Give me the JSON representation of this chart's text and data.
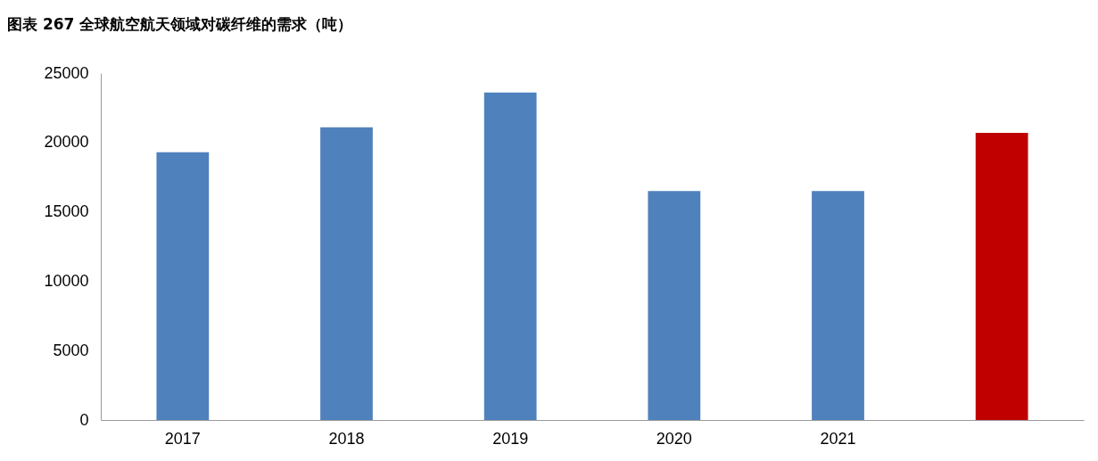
{
  "chart_data": {
    "type": "bar",
    "title": "图表 267 全球航空航天领域对碳纤维的需求（吨）",
    "categories": [
      "2017",
      "2018",
      "2019",
      "2020",
      "2021",
      null
    ],
    "values": [
      19300,
      21100,
      23600,
      16500,
      16500,
      20700
    ],
    "colors": [
      "#4f81bd",
      "#4f81bd",
      "#4f81bd",
      "#4f81bd",
      "#4f81bd",
      "#c00000"
    ],
    "ylim": [
      0,
      25000
    ],
    "yticks": [
      0,
      5000,
      10000,
      15000,
      20000,
      25000
    ],
    "grid": false
  }
}
